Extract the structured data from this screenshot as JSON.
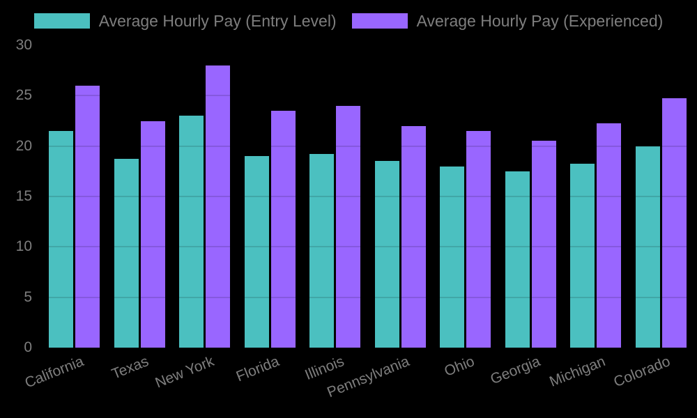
{
  "colors": {
    "background": "#000000",
    "entry_level_bar": "#4bc0c0",
    "experienced_bar": "#9966ff",
    "axis_text": "#7e7e7e",
    "legend_text": "#7e7e7e",
    "gridline": "rgba(0,0,0,0.13)"
  },
  "legend": {
    "items": [
      {
        "label": "Average Hourly Pay (Entry Level)",
        "color": "#4bc0c0"
      },
      {
        "label": "Average Hourly Pay (Experienced)",
        "color": "#9966ff"
      }
    ]
  },
  "chart_data": {
    "type": "bar",
    "title": "",
    "xlabel": "",
    "ylabel": "",
    "categories": [
      "California",
      "Texas",
      "New York",
      "Florida",
      "Illinois",
      "Pennsylvania",
      "Ohio",
      "Georgia",
      "Michigan",
      "Colorado"
    ],
    "series": [
      {
        "name": "Average Hourly Pay (Entry Level)",
        "color": "#4bc0c0",
        "values": [
          21.5,
          18.75,
          23,
          19,
          19.25,
          18.5,
          18,
          17.5,
          18.25,
          20
        ]
      },
      {
        "name": "Average Hourly Pay (Experienced)",
        "color": "#9966ff",
        "values": [
          26,
          22.5,
          28,
          23.5,
          24,
          22,
          21.5,
          20.5,
          22.25,
          24.75
        ]
      }
    ],
    "ylim": [
      0,
      30
    ],
    "yticks": [
      0,
      5,
      10,
      15,
      20,
      25,
      30
    ],
    "grid": true,
    "legend_position": "top"
  }
}
